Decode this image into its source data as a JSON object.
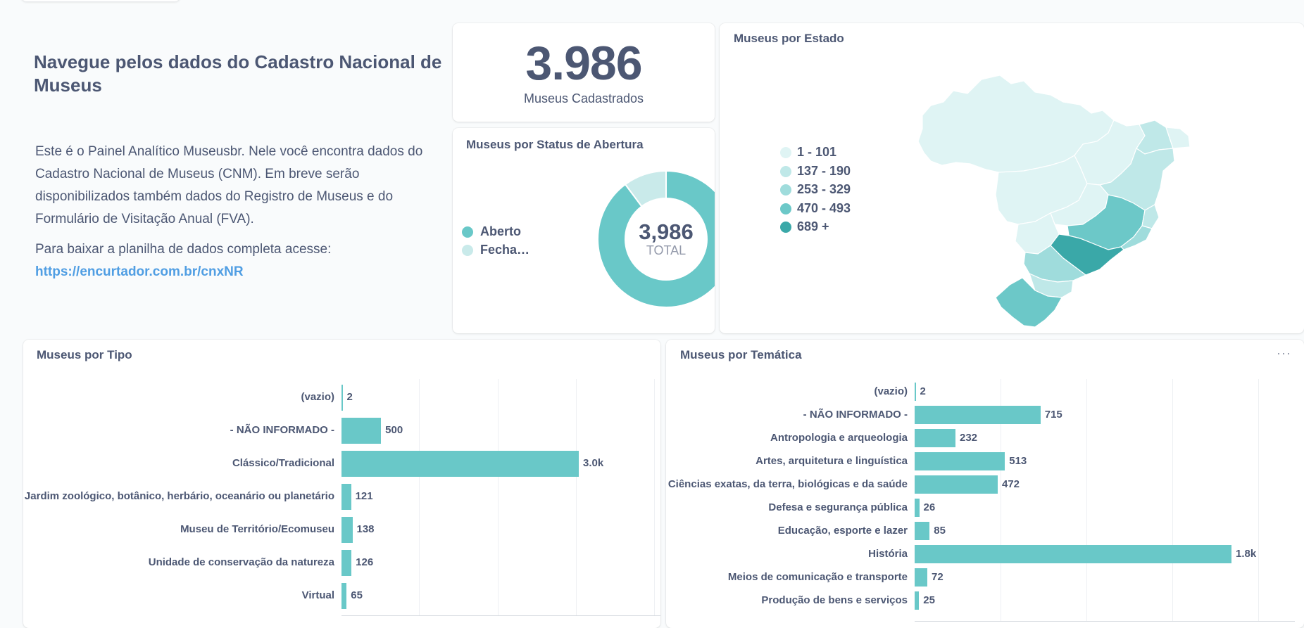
{
  "intro": {
    "title": "Navegue pelos dados do Cadastro Nacional de Museus",
    "paragraph1": "Este é o Painel Analítico Museusbr. Nele você encontra dados do Cadastro Nacional de Museus (CNM). Em breve serão disponibilizados também dados do Registro de Museus e do Formulário de Visitação Anual (FVA).",
    "paragraph2": "Para baixar a planilha de dados completa acesse:",
    "link": "https://encurtador.com.br/cnxNR"
  },
  "kpi": {
    "value": "3.986",
    "label": "Museus Cadastrados"
  },
  "status": {
    "title": "Museus por Status de Abertura",
    "total_value": "3,986",
    "total_label": "TOTAL",
    "legend": [
      {
        "label": "Aberto",
        "color": "#69c8c8"
      },
      {
        "label": "Fecha…",
        "color": "#c9eaea"
      }
    ],
    "chart_data": {
      "type": "pie",
      "categories": [
        "Aberto",
        "Fecha…"
      ],
      "values": [
        3580,
        406
      ],
      "colors": [
        "#69c8c8",
        "#c9eaea"
      ],
      "total": 3986
    }
  },
  "map": {
    "title": "Museus por Estado",
    "legend": [
      {
        "label": "1 - 101",
        "color": "#dff4f4"
      },
      {
        "label": "137 - 190",
        "color": "#bfe8e8"
      },
      {
        "label": "253 - 329",
        "color": "#9fdcdc"
      },
      {
        "label": "470 - 493",
        "color": "#6cc8c8"
      },
      {
        "label": "689 +",
        "color": "#3aa8a8"
      }
    ]
  },
  "tipo": {
    "title": "Museus por Tipo",
    "chart_data": {
      "type": "bar",
      "orientation": "horizontal",
      "categories": [
        "(vazio)",
        "- NÃO INFORMADO -",
        "Clássico/Tradicional",
        "Jardim zoológico, botânico, herbário, oceanário ou planetário",
        "Museu de Território/Ecomuseu",
        "Unidade de conservação da natureza",
        "Virtual"
      ],
      "values": [
        2,
        500,
        3000,
        121,
        138,
        126,
        65
      ],
      "labels": [
        "2",
        "500",
        "3.0k",
        "121",
        "138",
        "126",
        "65"
      ],
      "xlim": [
        0,
        3500
      ],
      "color": "#69c8c8"
    }
  },
  "tematica": {
    "title": "Museus por Temática",
    "more_label": "···",
    "chart_data": {
      "type": "bar",
      "orientation": "horizontal",
      "categories": [
        "(vazio)",
        "- NÃO INFORMADO -",
        "Antropologia e arqueologia",
        "Artes, arquitetura e linguística",
        "Ciências exatas, da terra, biológicas e da saúde",
        "Defesa e segurança pública",
        "Educação, esporte e lazer",
        "História",
        "Meios de comunicação e transporte",
        "Produção de bens e serviços"
      ],
      "values": [
        2,
        715,
        232,
        513,
        472,
        26,
        85,
        1800,
        72,
        25
      ],
      "labels": [
        "2",
        "715",
        "232",
        "513",
        "472",
        "26",
        "85",
        "1.8k",
        "72",
        "25"
      ],
      "xlim": [
        0,
        2000
      ],
      "color": "#69c8c8"
    }
  }
}
